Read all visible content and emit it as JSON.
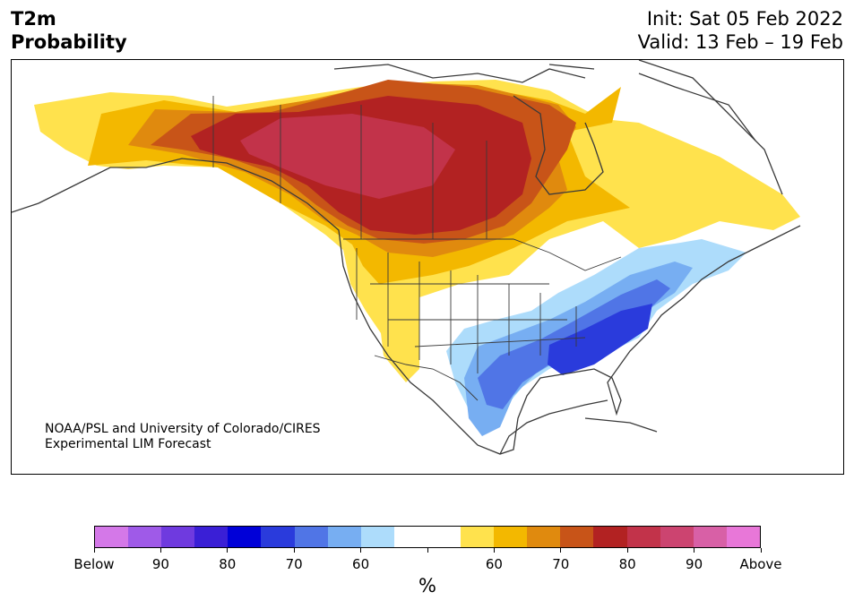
{
  "title": {
    "line1": "T2m",
    "line2": "Probability"
  },
  "info": {
    "init": "Init: Sat 05 Feb 2022",
    "valid": "Valid: 13 Feb – 19 Feb"
  },
  "credit": {
    "line1": "NOAA/PSL and University of Colorado/CIRES",
    "line2": "Experimental LIM Forecast"
  },
  "colorbar": {
    "colors": [
      "#d478e8",
      "#9f5ae8",
      "#6f3adf",
      "#3a1fd6",
      "#0000d8",
      "#2a3bdc",
      "#5075e6",
      "#77aef2",
      "#addcfb",
      "#ffffff",
      "#ffffff",
      "#ffe24d",
      "#f3b800",
      "#e08a0e",
      "#c85418",
      "#b22222",
      "#c2334a",
      "#cc4470",
      "#d860a6",
      "#e877d8"
    ],
    "tick_labels": [
      "Below",
      "90",
      "80",
      "70",
      "60",
      "",
      "60",
      "70",
      "80",
      "90",
      "Above"
    ],
    "unit": "%"
  }
}
